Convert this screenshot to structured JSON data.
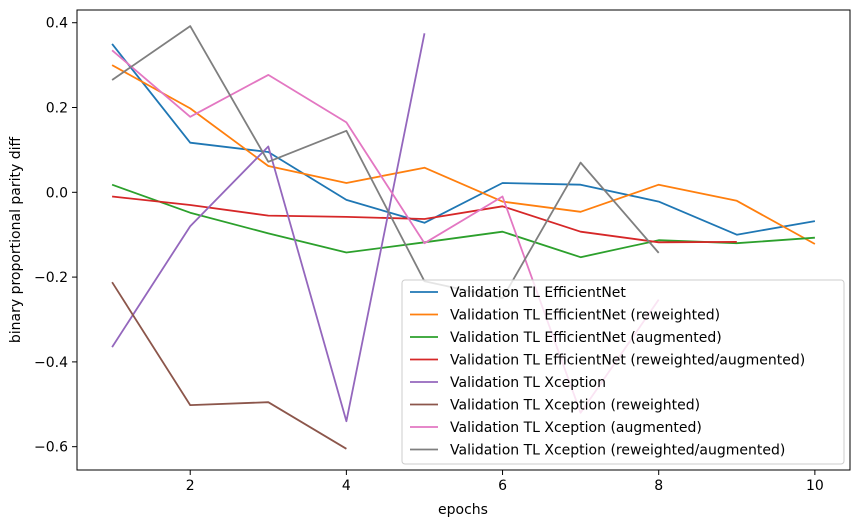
{
  "chart_data": {
    "type": "line",
    "title": "",
    "xlabel": "epochs",
    "ylabel": "binary proportional parity diff",
    "xlim": [
      0.55,
      10.45
    ],
    "ylim": [
      -0.655,
      0.43
    ],
    "xticks": [
      2,
      4,
      6,
      8,
      10
    ],
    "yticks": [
      -0.6,
      -0.4,
      -0.2,
      0.0,
      0.2,
      0.4
    ],
    "xtick_labels": [
      "2",
      "4",
      "6",
      "8",
      "10"
    ],
    "ytick_labels": [
      "−0.6",
      "−0.4",
      "−0.2",
      "0.0",
      "0.2",
      "0.4"
    ],
    "grid": false,
    "legend_position": "lower-right",
    "series": [
      {
        "name": "Validation TL EfficientNet",
        "color": "#1f77b4",
        "x": [
          1,
          2,
          3,
          4,
          5,
          6,
          7,
          8,
          9,
          10
        ],
        "y": [
          0.35,
          0.117,
          0.095,
          -0.018,
          -0.072,
          0.022,
          0.018,
          -0.022,
          -0.1,
          -0.068
        ]
      },
      {
        "name": "Validation TL EfficientNet (reweighted)",
        "color": "#ff7f0e",
        "x": [
          1,
          2,
          3,
          4,
          5,
          6,
          7,
          8,
          9,
          10
        ],
        "y": [
          0.3,
          0.198,
          0.062,
          0.022,
          0.058,
          -0.022,
          -0.046,
          0.018,
          -0.02,
          -0.122
        ]
      },
      {
        "name": "Validation TL EfficientNet (augmented)",
        "color": "#2ca02c",
        "x": [
          1,
          2,
          3,
          4,
          5,
          6,
          7,
          8,
          9,
          10
        ],
        "y": [
          0.018,
          -0.048,
          -0.097,
          -0.142,
          -0.118,
          -0.093,
          -0.153,
          -0.113,
          -0.12,
          -0.107
        ]
      },
      {
        "name": "Validation TL EfficientNet (reweighted/augmented)",
        "color": "#d62728",
        "x": [
          1,
          2,
          3,
          4,
          5,
          6,
          7,
          8,
          9
        ],
        "y": [
          -0.01,
          -0.03,
          -0.055,
          -0.058,
          -0.063,
          -0.033,
          -0.093,
          -0.118,
          -0.117
        ]
      },
      {
        "name": "Validation TL Xception",
        "color": "#9467bd",
        "x": [
          1,
          2,
          3,
          4,
          5
        ],
        "y": [
          -0.365,
          -0.08,
          0.108,
          -0.54,
          0.375
        ]
      },
      {
        "name": "Validation TL Xception (reweighted)",
        "color": "#8c564b",
        "x": [
          1,
          2,
          3,
          4
        ],
        "y": [
          -0.212,
          -0.502,
          -0.495,
          -0.605
        ]
      },
      {
        "name": "Validation TL Xception (augmented)",
        "color": "#e377c2",
        "x": [
          1,
          2,
          3,
          4,
          5,
          6,
          7,
          8
        ],
        "y": [
          0.335,
          0.178,
          0.277,
          0.165,
          -0.12,
          -0.01,
          -0.52,
          -0.253
        ]
      },
      {
        "name": "Validation TL Xception (reweighted/augmented)",
        "color": "#7f7f7f",
        "x": [
          1,
          2,
          3,
          4,
          5,
          6,
          7,
          8
        ],
        "y": [
          0.265,
          0.392,
          0.072,
          0.145,
          -0.21,
          -0.25,
          0.07,
          -0.143
        ]
      }
    ]
  }
}
